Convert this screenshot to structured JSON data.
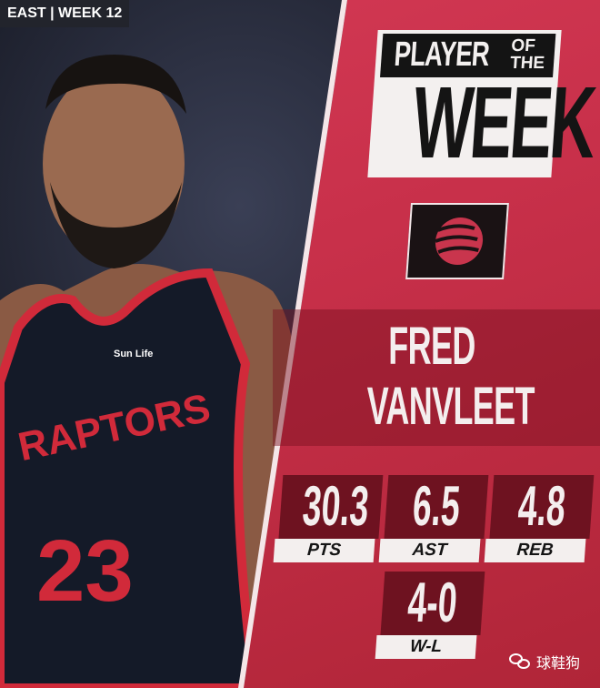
{
  "tag": "EAST | WEEK 12",
  "title": {
    "line1": "PLAYER",
    "of": "OF",
    "the": "THE",
    "line2": "WEEK"
  },
  "team_logo_icon": "raptors-claw-basketball-icon",
  "player": {
    "first": "FRED",
    "last": "VANVLEET"
  },
  "jersey": {
    "team": "RAPTORS",
    "number": "23",
    "sponsor": "Sun Life"
  },
  "stats": [
    {
      "value": "30.3",
      "label": "PTS"
    },
    {
      "value": "6.5",
      "label": "AST"
    },
    {
      "value": "4.8",
      "label": "REB"
    },
    {
      "value": "4-0",
      "label": "W-L"
    }
  ],
  "watermark": "球鞋狗",
  "colors": {
    "panel": "#c8304a",
    "stat_box": "#6e1220",
    "jersey": "#141a28",
    "trim": "#d12a3a"
  }
}
